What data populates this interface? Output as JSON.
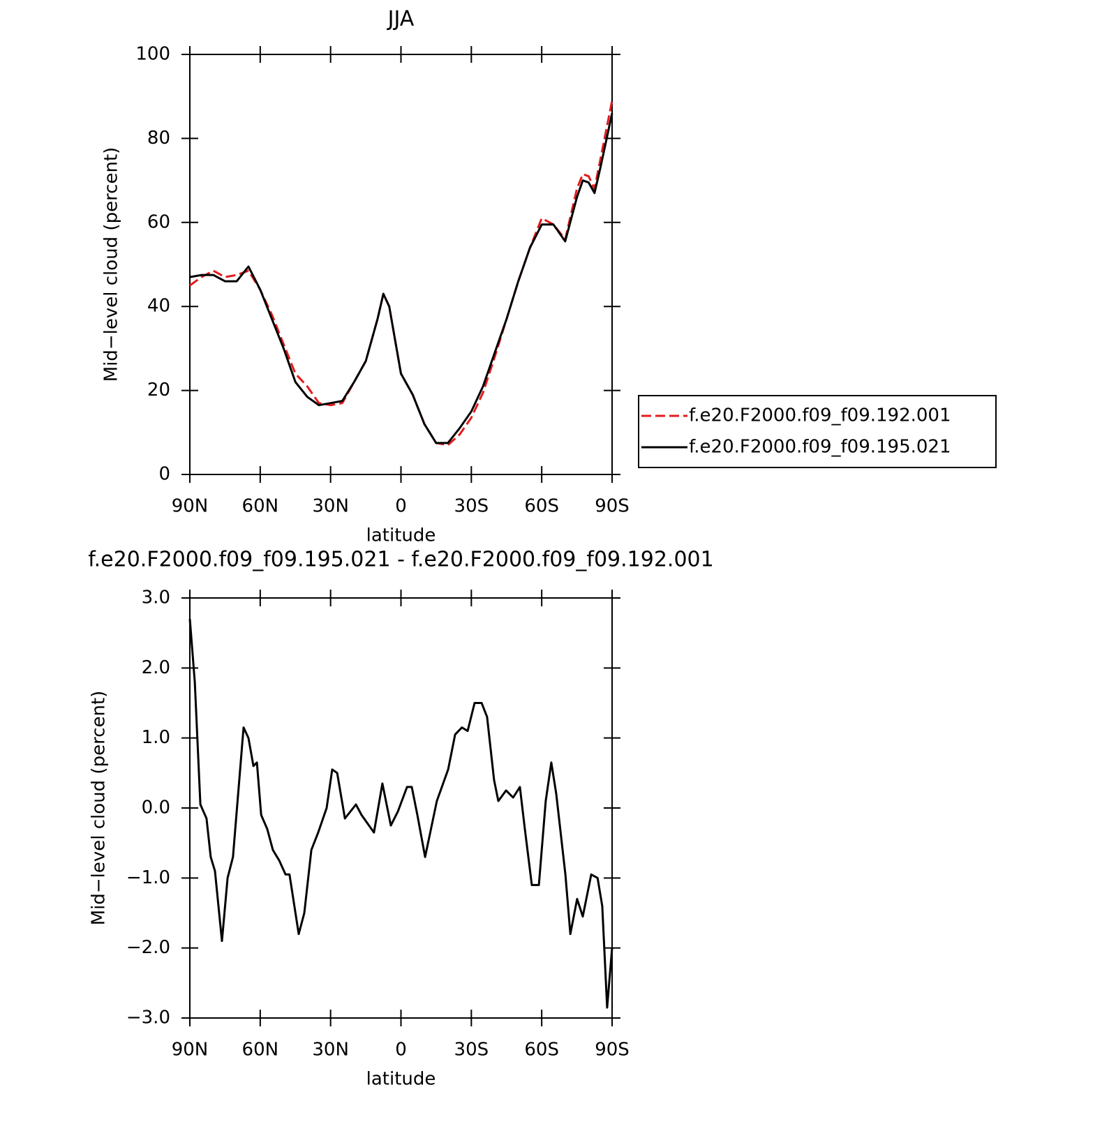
{
  "chart_data": [
    {
      "type": "line",
      "title": "JJA",
      "xlabel": "latitude",
      "ylabel": "Mid−level cloud (percent)",
      "x": [
        90,
        85,
        80,
        75,
        70,
        65,
        60,
        55,
        50,
        45,
        40,
        35,
        30,
        25,
        20,
        15,
        10,
        7.5,
        5,
        0,
        -5,
        -10,
        -15,
        -20,
        -25,
        -30,
        -35,
        -40,
        -45,
        -50,
        -55,
        -60,
        -65,
        -70,
        -75,
        -77.5,
        -80,
        -82.5,
        -85,
        -90
      ],
      "series": [
        {
          "name": "f.e20.F2000.f09_f09.192.001",
          "color": "#e31a1c",
          "dash": true,
          "values": [
            45,
            47,
            48.5,
            47,
            47.5,
            48.5,
            44,
            38,
            31,
            24,
            21,
            17,
            16.5,
            17,
            22,
            27,
            37,
            43,
            40,
            24,
            19,
            12,
            7.5,
            7,
            9.5,
            13.5,
            19.5,
            28,
            37,
            46,
            54,
            61,
            59.5,
            56,
            68,
            71.5,
            71,
            68,
            75,
            89
          ]
        },
        {
          "name": "f.e20.F2000.f09_f09.195.021",
          "color": "#000000",
          "dash": false,
          "values": [
            47,
            47.5,
            47.5,
            46,
            46,
            49.5,
            44,
            37,
            30,
            22,
            18.5,
            16.5,
            17,
            17.5,
            22,
            27,
            37,
            43,
            40,
            24,
            19,
            12,
            7.5,
            7.5,
            11,
            15,
            21,
            29,
            37,
            46,
            54,
            59.5,
            59.5,
            55.5,
            66,
            70,
            69.5,
            67,
            73,
            86
          ]
        }
      ],
      "xlim": [
        90,
        -90
      ],
      "xticks": [
        {
          "value": 90,
          "label": "90N"
        },
        {
          "value": 60,
          "label": "60N"
        },
        {
          "value": 30,
          "label": "30N"
        },
        0,
        {
          "value": -30,
          "label": "30S"
        },
        {
          "value": -60,
          "label": "60S"
        },
        {
          "value": -90,
          "label": "90S"
        }
      ],
      "ylim": [
        0,
        100
      ],
      "yticks": [
        0,
        20,
        40,
        60,
        80,
        100
      ],
      "legend": "right"
    },
    {
      "type": "line",
      "title": "f.e20.F2000.f09_f09.195.021 - f.e20.F2000.f09_f09.192.001",
      "xlabel": "latitude",
      "ylabel": "Mid−level cloud (percent)",
      "x": [
        90,
        87.9,
        85.5,
        82.9,
        81.1,
        79.3,
        76.3,
        73.9,
        71.6,
        67.1,
        65.0,
        62.9,
        61.4,
        59.6,
        57.0,
        54.6,
        51.9,
        49.2,
        47.5,
        43.6,
        41.2,
        38.2,
        35.3,
        31.7,
        29.3,
        27.2,
        23.9,
        19.2,
        16.8,
        11.5,
        7.9,
        4.3,
        1.3,
        -2.6,
        -4.6,
        -7.0,
        -10.3,
        -15.3,
        -20.1,
        -23.1,
        -26.0,
        -28.4,
        -31.4,
        -34.4,
        -36.7,
        -39.7,
        -41.5,
        -44.8,
        -47.8,
        -50.7,
        -52.8,
        -55.8,
        -58.8,
        -61.7,
        -64.1,
        -66.2,
        -70.1,
        -72.2,
        -75.1,
        -77.5,
        -81.1,
        -83.8,
        -85.8,
        -87.9,
        -90
      ],
      "series": [
        {
          "name": "f.e20.F2000.f09_f09.195.021 - f.e20.F2000.f09_f09.192.001",
          "color": "#000000",
          "dash": false,
          "values": [
            2.7,
            1.8,
            0.05,
            -0.15,
            -0.7,
            -0.9,
            -1.9,
            -1.0,
            -0.7,
            1.15,
            1.0,
            0.6,
            0.65,
            -0.1,
            -0.3,
            -0.6,
            -0.75,
            -0.95,
            -0.95,
            -1.8,
            -1.5,
            -0.6,
            -0.35,
            0.0,
            0.55,
            0.5,
            -0.15,
            0.05,
            -0.1,
            -0.35,
            0.35,
            -0.25,
            -0.05,
            0.3,
            0.3,
            -0.1,
            -0.7,
            0.1,
            0.55,
            1.05,
            1.15,
            1.1,
            1.5,
            1.5,
            1.3,
            0.4,
            0.1,
            0.25,
            0.15,
            0.3,
            -0.3,
            -1.1,
            -1.1,
            0.1,
            0.65,
            0.2,
            -0.95,
            -1.8,
            -1.3,
            -1.55,
            -0.95,
            -1.0,
            -1.4,
            -2.85,
            -2.0
          ]
        }
      ],
      "xlim": [
        90,
        -90
      ],
      "xticks": [
        {
          "value": 90,
          "label": "90N"
        },
        {
          "value": 60,
          "label": "60N"
        },
        {
          "value": 30,
          "label": "30N"
        },
        0,
        {
          "value": -30,
          "label": "30S"
        },
        {
          "value": -60,
          "label": "60S"
        },
        {
          "value": -90,
          "label": "90S"
        }
      ],
      "ylim": [
        -3,
        3
      ],
      "yticks": [
        {
          "value": -3,
          "label": "−3.0"
        },
        {
          "value": -2,
          "label": "−2.0"
        },
        {
          "value": -1,
          "label": "−1.0"
        },
        {
          "value": 0,
          "label": "0.0"
        },
        {
          "value": 1,
          "label": "1.0"
        },
        {
          "value": 2,
          "label": "2.0"
        },
        {
          "value": 3,
          "label": "3.0"
        }
      ]
    }
  ]
}
